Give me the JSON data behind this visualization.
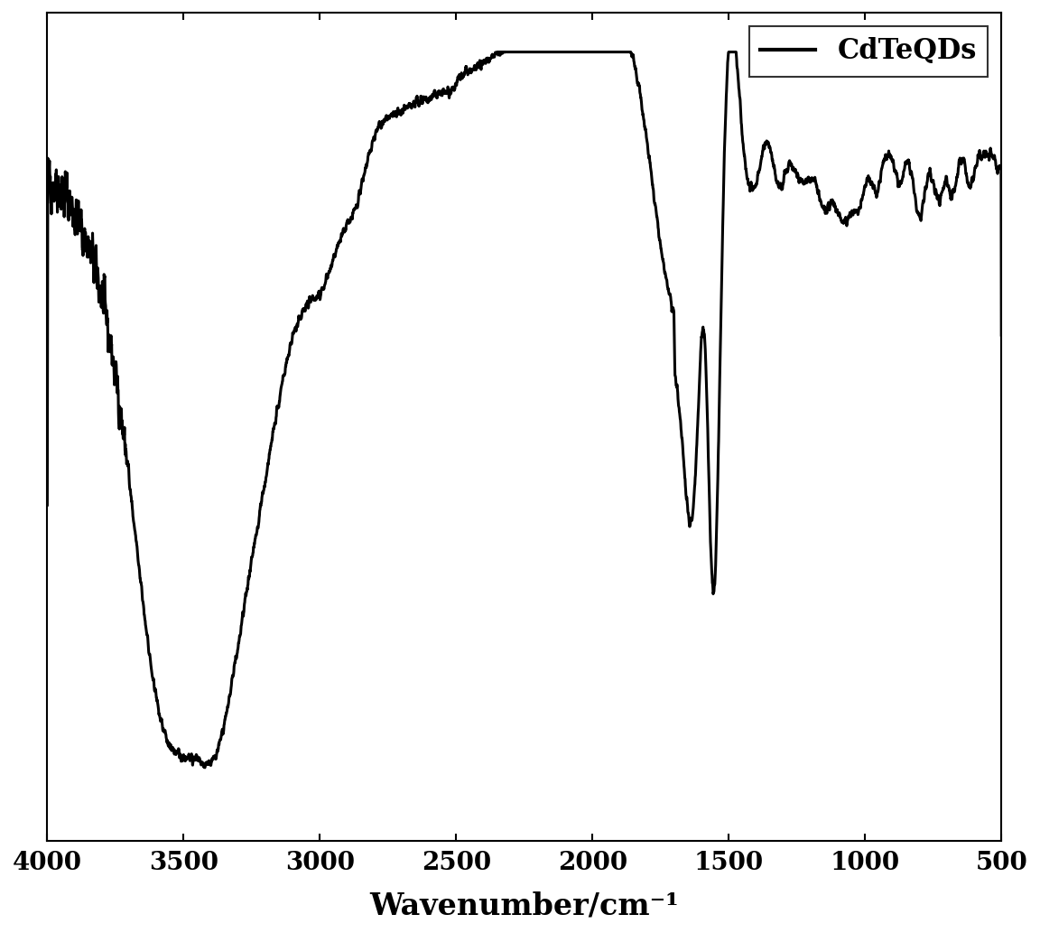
{
  "x_min": 500,
  "x_max": 4000,
  "x_ticks": [
    4000,
    3500,
    3000,
    2500,
    2000,
    1500,
    1000,
    500
  ],
  "xlabel": "Wavenumber/cm⁻¹",
  "legend_label": "CdTeQDs",
  "line_color": "#000000",
  "line_width": 2.2,
  "background_color": "#ffffff",
  "tick_fontsize": 20,
  "xlabel_fontsize": 24,
  "legend_fontsize": 22
}
